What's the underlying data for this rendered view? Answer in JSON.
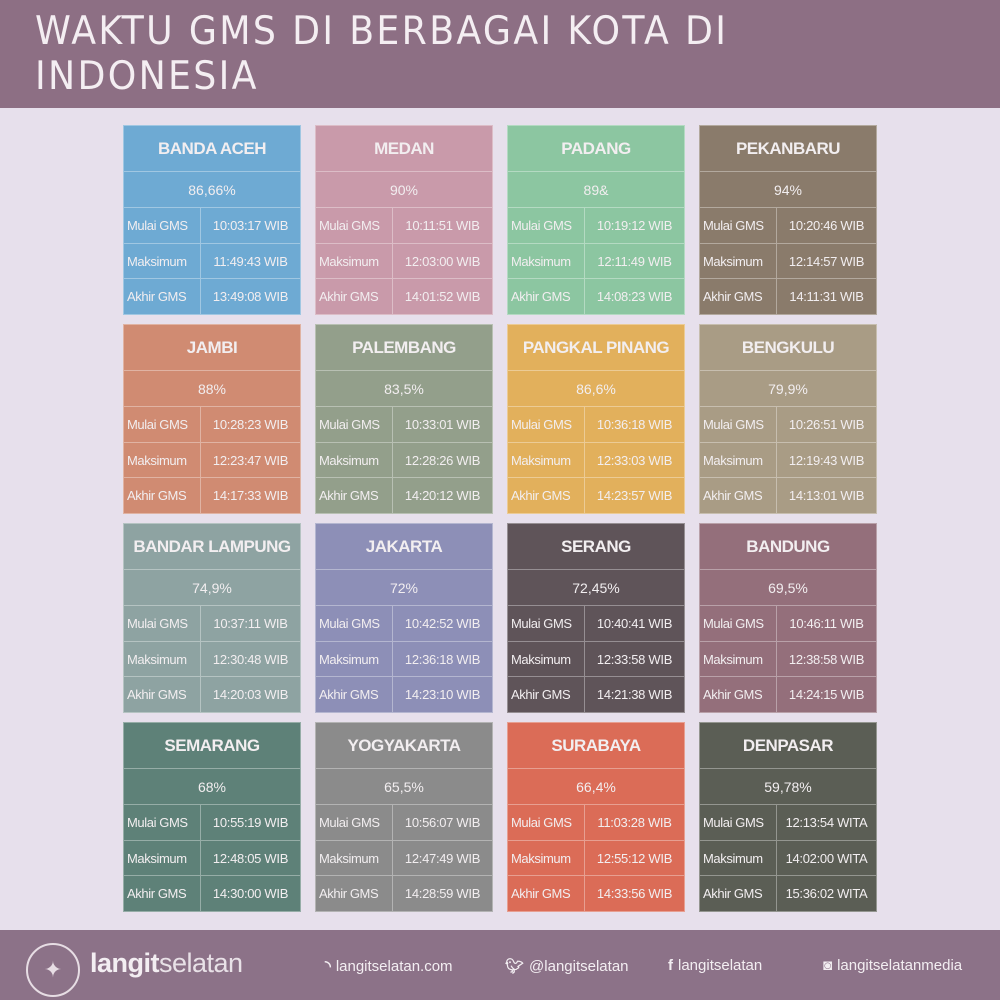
{
  "header": {
    "title": "WAKTU GMS DI BERBAGAI KOTA DI INDONESIA"
  },
  "row_labels": [
    "Mulai GMS",
    "Maksimum",
    "Akhir GMS"
  ],
  "cities": [
    {
      "name": "BANDA ACEH",
      "pct": "86,66%",
      "times": [
        "10:03:17 WIB",
        "11:49:43 WIB",
        "13:49:08 WIB"
      ],
      "color": "#6eaad3"
    },
    {
      "name": "MEDAN",
      "pct": "90%",
      "times": [
        "10:11:51 WIB",
        "12:03:00 WIB",
        "14:01:52 WIB"
      ],
      "color": "#c99aaa"
    },
    {
      "name": "PADANG",
      "pct": "89&",
      "times": [
        "10:19:12 WIB",
        "12:11:49 WIB",
        "14:08:23 WIB"
      ],
      "color": "#8cc6a1"
    },
    {
      "name": "PEKANBARU",
      "pct": "94%",
      "times": [
        "10:20:46 WIB",
        "12:14:57 WIB",
        "14:11:31 WIB"
      ],
      "color": "#8a7b6b"
    },
    {
      "name": "JAMBI",
      "pct": "88%",
      "times": [
        "10:28:23 WIB",
        "12:23:47 WIB",
        "14:17:33 WIB"
      ],
      "color": "#d08b72"
    },
    {
      "name": "PALEMBANG",
      "pct": "83,5%",
      "times": [
        "10:33:01 WIB",
        "12:28:26 WIB",
        "14:20:12 WIB"
      ],
      "color": "#939f8b"
    },
    {
      "name": "PANGKAL PINANG",
      "pct": "86,6%",
      "times": [
        "10:36:18 WIB",
        "12:33:03 WIB",
        "14:23:57 WIB"
      ],
      "color": "#e2b05c"
    },
    {
      "name": "BENGKULU",
      "pct": "79,9%",
      "times": [
        "10:26:51 WIB",
        "12:19:43 WIB",
        "14:13:01 WIB"
      ],
      "color": "#a99c85"
    },
    {
      "name": "BANDAR LAMPUNG",
      "pct": "74,9%",
      "times": [
        "10:37:11 WIB",
        "12:30:48 WIB",
        "14:20:03 WIB"
      ],
      "color": "#8ea3a2"
    },
    {
      "name": "JAKARTA",
      "pct": "72%",
      "times": [
        "10:42:52 WIB",
        "12:36:18 WIB",
        "14:23:10 WIB"
      ],
      "color": "#8d8fb7"
    },
    {
      "name": "SERANG",
      "pct": "72,45%",
      "times": [
        "10:40:41 WIB",
        "12:33:58 WIB",
        "14:21:38 WIB"
      ],
      "color": "#5f5459"
    },
    {
      "name": "BANDUNG",
      "pct": "69,5%",
      "times": [
        "10:46:11 WIB",
        "12:38:58 WIB",
        "14:24:15 WIB"
      ],
      "color": "#946f7b"
    },
    {
      "name": "SEMARANG",
      "pct": "68%",
      "times": [
        "10:55:19 WIB",
        "12:48:05 WIB",
        "14:30:00 WIB"
      ],
      "color": "#5e8178"
    },
    {
      "name": "YOGYAKARTA",
      "pct": "65,5%",
      "times": [
        "10:56:07 WIB",
        "12:47:49 WIB",
        "14:28:59 WIB"
      ],
      "color": "#8b8b8b"
    },
    {
      "name": "SURABAYA",
      "pct": "66,4%",
      "times": [
        "11:03:28 WIB",
        "12:55:12 WIB",
        "14:33:56 WIB"
      ],
      "color": "#db6c57"
    },
    {
      "name": "DENPASAR",
      "pct": "59,78%",
      "times": [
        "12:13:54 WITA",
        "14:02:00 WITA",
        "15:36:02 WITA"
      ],
      "color": "#5b5e55"
    }
  ],
  "footer": {
    "logo_text": "LANGITSELATAN",
    "brand_bold": "langit",
    "brand_light": "selatan",
    "website": "langitselatan.com",
    "twitter": "@langitselatan",
    "facebook": "langitselatan",
    "instagram": "langitselatanmedia"
  }
}
